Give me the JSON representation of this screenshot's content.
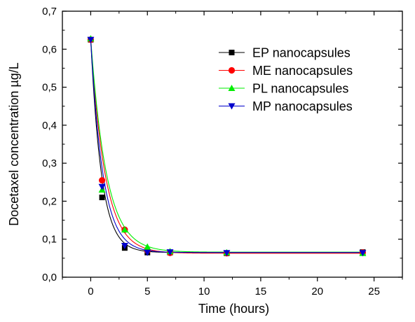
{
  "chart_data": {
    "type": "scatter",
    "xlabel": "Time (hours)",
    "ylabel": "Docetaxel concentration µg/L",
    "xlim": [
      -2.5,
      27.5
    ],
    "ylim": [
      0,
      0.7
    ],
    "x_ticks": [
      0,
      5,
      10,
      15,
      20,
      25
    ],
    "x_tick_labels": [
      "0",
      "5",
      "10",
      "15",
      "20",
      "25"
    ],
    "y_ticks": [
      0,
      0.1,
      0.2,
      0.3,
      0.4,
      0.5,
      0.6,
      0.7
    ],
    "y_tick_labels": [
      "0,0",
      "0,1",
      "0,2",
      "0,3",
      "0,4",
      "0,5",
      "0,6",
      "0,7"
    ],
    "grid": false,
    "legend_position": "top-right",
    "series": [
      {
        "name": "EP nanocapsules",
        "color": "#000000",
        "marker": "square",
        "x": [
          0,
          1,
          3,
          5,
          7,
          12,
          24
        ],
        "y": [
          0.625,
          0.21,
          0.077,
          0.065,
          0.065,
          0.063,
          0.066
        ],
        "fit": {
          "plateau": 0.065,
          "amplitude": 0.56,
          "rate": 1.05
        }
      },
      {
        "name": "ME nanocapsules",
        "color": "#ff0000",
        "marker": "circle",
        "x": [
          0,
          1,
          3,
          5,
          7,
          12,
          24
        ],
        "y": [
          0.625,
          0.255,
          0.125,
          0.07,
          0.064,
          0.063,
          0.065
        ],
        "fit": {
          "plateau": 0.063,
          "amplitude": 0.562,
          "rate": 0.78
        }
      },
      {
        "name": "PL nanocapsules",
        "color": "#00ee00",
        "marker": "triangle-up",
        "x": [
          0,
          1,
          3,
          5,
          7,
          12,
          24
        ],
        "y": [
          0.628,
          0.23,
          0.125,
          0.08,
          0.068,
          0.065,
          0.063
        ],
        "fit": {
          "plateau": 0.066,
          "amplitude": 0.562,
          "rate": 0.72
        }
      },
      {
        "name": "MP nanocapsules",
        "color": "#0000cc",
        "marker": "triangle-down",
        "x": [
          0,
          1,
          3,
          5,
          7,
          12,
          24
        ],
        "y": [
          0.625,
          0.238,
          0.083,
          0.065,
          0.066,
          0.064,
          0.064
        ],
        "fit": {
          "plateau": 0.065,
          "amplitude": 0.56,
          "rate": 0.92
        }
      }
    ]
  }
}
